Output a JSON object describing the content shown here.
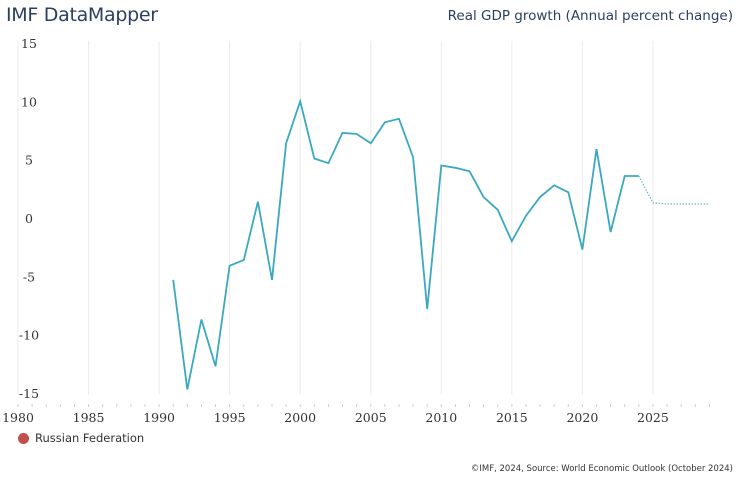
{
  "header": {
    "app_title": "IMF DataMapper",
    "chart_title": "Real GDP growth (Annual percent change)"
  },
  "legend": {
    "items": [
      {
        "label": "Russian Federation",
        "color": "#c0504d"
      }
    ]
  },
  "footer": {
    "source": "©IMF, 2024, Source: World Economic Outlook (October 2024)"
  },
  "colors": {
    "line": "#3aa9bf",
    "grid": "#ececec"
  },
  "chart_data": {
    "type": "line",
    "title": "Real GDP growth (Annual percent change)",
    "xlabel": "",
    "ylabel": "",
    "xlim": [
      1980,
      2029
    ],
    "ylim": [
      -15,
      15
    ],
    "x_ticks": [
      "1980",
      "1985",
      "1990",
      "1995",
      "2000",
      "2005",
      "2010",
      "2015",
      "2020",
      "2025"
    ],
    "y_ticks": [
      "15",
      "10",
      "5",
      "0",
      "-5",
      "-10",
      "-15"
    ],
    "grid": true,
    "legend_position": "bottom-left",
    "projection_start": 2024,
    "series": [
      {
        "name": "Russian Federation",
        "x": [
          1991,
          1992,
          1993,
          1994,
          1995,
          1996,
          1997,
          1998,
          1999,
          2000,
          2001,
          2002,
          2003,
          2004,
          2005,
          2006,
          2007,
          2008,
          2009,
          2010,
          2011,
          2012,
          2013,
          2014,
          2015,
          2016,
          2017,
          2018,
          2019,
          2020,
          2021,
          2022,
          2023,
          2024,
          2025,
          2026,
          2027,
          2028,
          2029
        ],
        "values": [
          -5.3,
          -14.7,
          -8.7,
          -12.7,
          -4.1,
          -3.6,
          1.4,
          -5.3,
          6.4,
          10.0,
          5.1,
          4.7,
          7.3,
          7.2,
          6.4,
          8.2,
          8.5,
          5.2,
          -7.8,
          4.5,
          4.3,
          4.0,
          1.8,
          0.7,
          -2.0,
          0.2,
          1.8,
          2.8,
          2.2,
          -2.7,
          5.9,
          -1.2,
          3.6,
          3.6,
          1.3,
          1.2,
          1.2,
          1.2,
          1.2
        ]
      }
    ]
  }
}
